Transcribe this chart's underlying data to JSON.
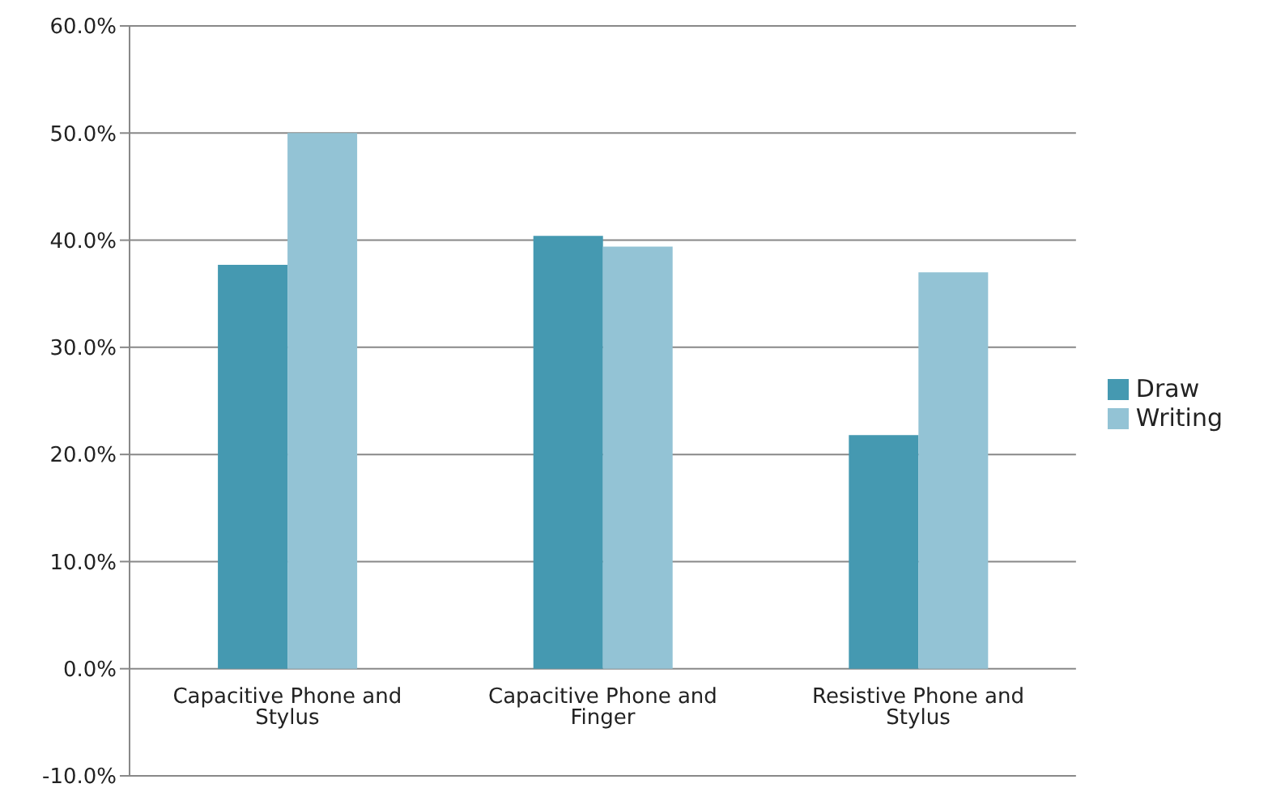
{
  "chart_data": {
    "type": "bar",
    "categories": [
      "Capacitive Phone and Stylus",
      "Capacitive Phone and Finger",
      "Resistive Phone and Stylus"
    ],
    "series": [
      {
        "name": "Draw",
        "color": "#4599b1",
        "values": [
          37.7,
          40.4,
          21.8
        ]
      },
      {
        "name": "Writing",
        "color": "#93c3d5",
        "values": [
          50.0,
          39.4,
          37.0
        ]
      }
    ],
    "ylim": [
      -10,
      60
    ],
    "yticks": [
      {
        "value": -10,
        "label": "-10.0%"
      },
      {
        "value": 0,
        "label": "0.0%"
      },
      {
        "value": 10,
        "label": "10.0%"
      },
      {
        "value": 20,
        "label": "20.0%"
      },
      {
        "value": 30,
        "label": "30.0%"
      },
      {
        "value": 40,
        "label": "40.0%"
      },
      {
        "value": 50,
        "label": "50.0%"
      },
      {
        "value": 60,
        "label": "60.0%"
      }
    ],
    "grid": "y",
    "legend": "right"
  }
}
